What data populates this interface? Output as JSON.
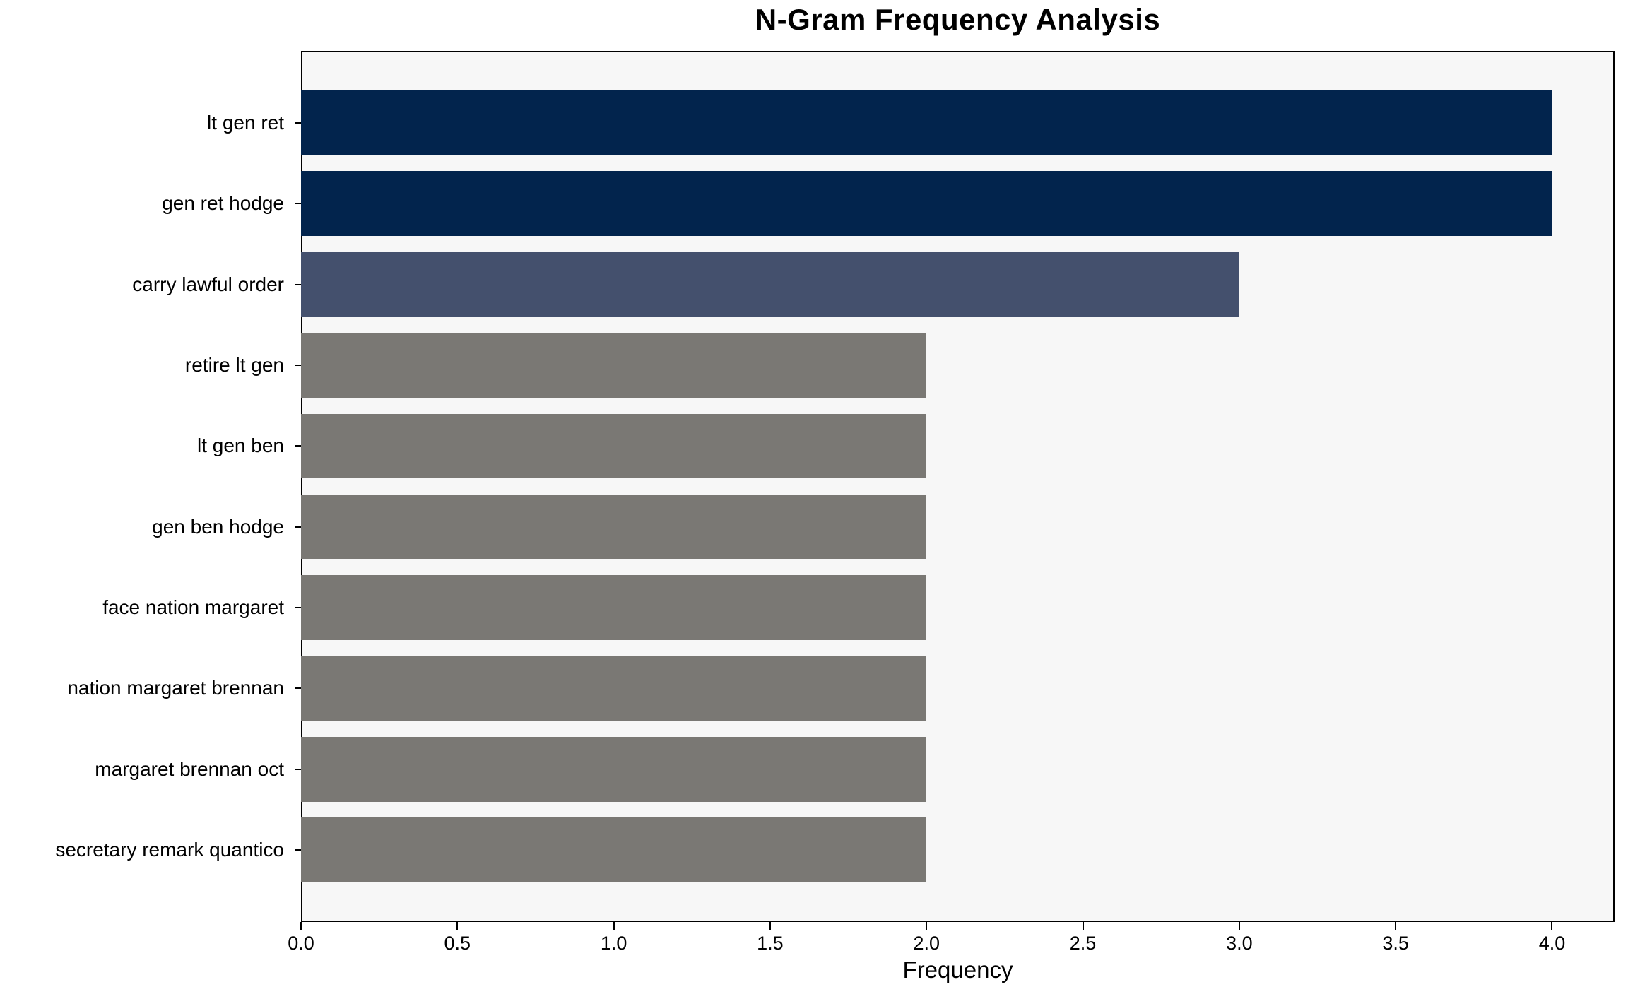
{
  "chart_data": {
    "type": "bar",
    "orientation": "horizontal",
    "title": "N-Gram Frequency Analysis",
    "xlabel": "Frequency",
    "ylabel": "",
    "categories": [
      "lt gen ret",
      "gen ret hodge",
      "carry lawful order",
      "retire lt gen",
      "lt gen ben",
      "gen ben hodge",
      "face nation margaret",
      "nation margaret brennan",
      "margaret brennan oct",
      "secretary remark quantico"
    ],
    "values": [
      4,
      4,
      3,
      2,
      2,
      2,
      2,
      2,
      2,
      2
    ],
    "bar_colors": [
      "#02244d",
      "#02244d",
      "#44506d",
      "#7a7874",
      "#7a7874",
      "#7a7874",
      "#7a7874",
      "#7a7874",
      "#7a7874",
      "#7a7874"
    ],
    "xlim": [
      0,
      4.2
    ],
    "x_ticks": [
      0.0,
      0.5,
      1.0,
      1.5,
      2.0,
      2.5,
      3.0,
      3.5,
      4.0
    ],
    "x_tick_labels": [
      "0.0",
      "0.5",
      "1.0",
      "1.5",
      "2.0",
      "2.5",
      "3.0",
      "3.5",
      "4.0"
    ],
    "grid": false,
    "legend": false,
    "plot_background": "#f7f7f7",
    "figure_background": "#ffffff",
    "spine_color": "#000000"
  }
}
